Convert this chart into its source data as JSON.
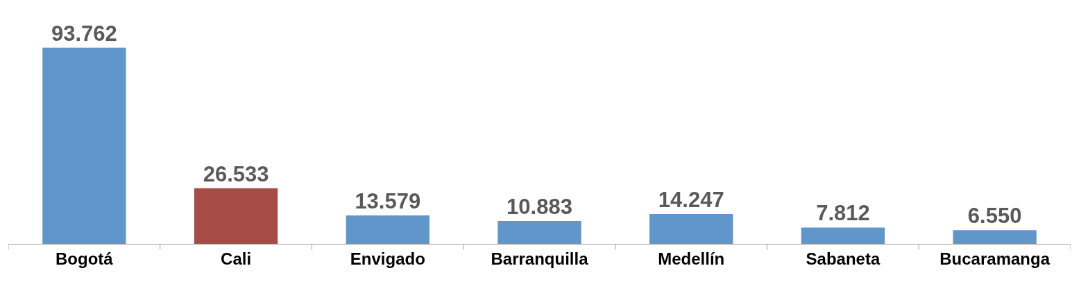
{
  "chart_data": {
    "type": "bar",
    "categories": [
      "Bogotá",
      "Cali",
      "Envigado",
      "Barranquilla",
      "Medellín",
      "Sabaneta",
      "Bucaramanga"
    ],
    "values": [
      93762,
      26533,
      13579,
      10883,
      14247,
      7812,
      6550
    ],
    "value_labels": [
      "93.762",
      "26.533",
      "13.579",
      "10.883",
      "14.247",
      "7.812",
      "6.550"
    ],
    "colors": [
      "#6096c9",
      "#a64b45",
      "#6096c9",
      "#6096c9",
      "#6096c9",
      "#6096c9",
      "#6096c9"
    ],
    "legend": false
  }
}
